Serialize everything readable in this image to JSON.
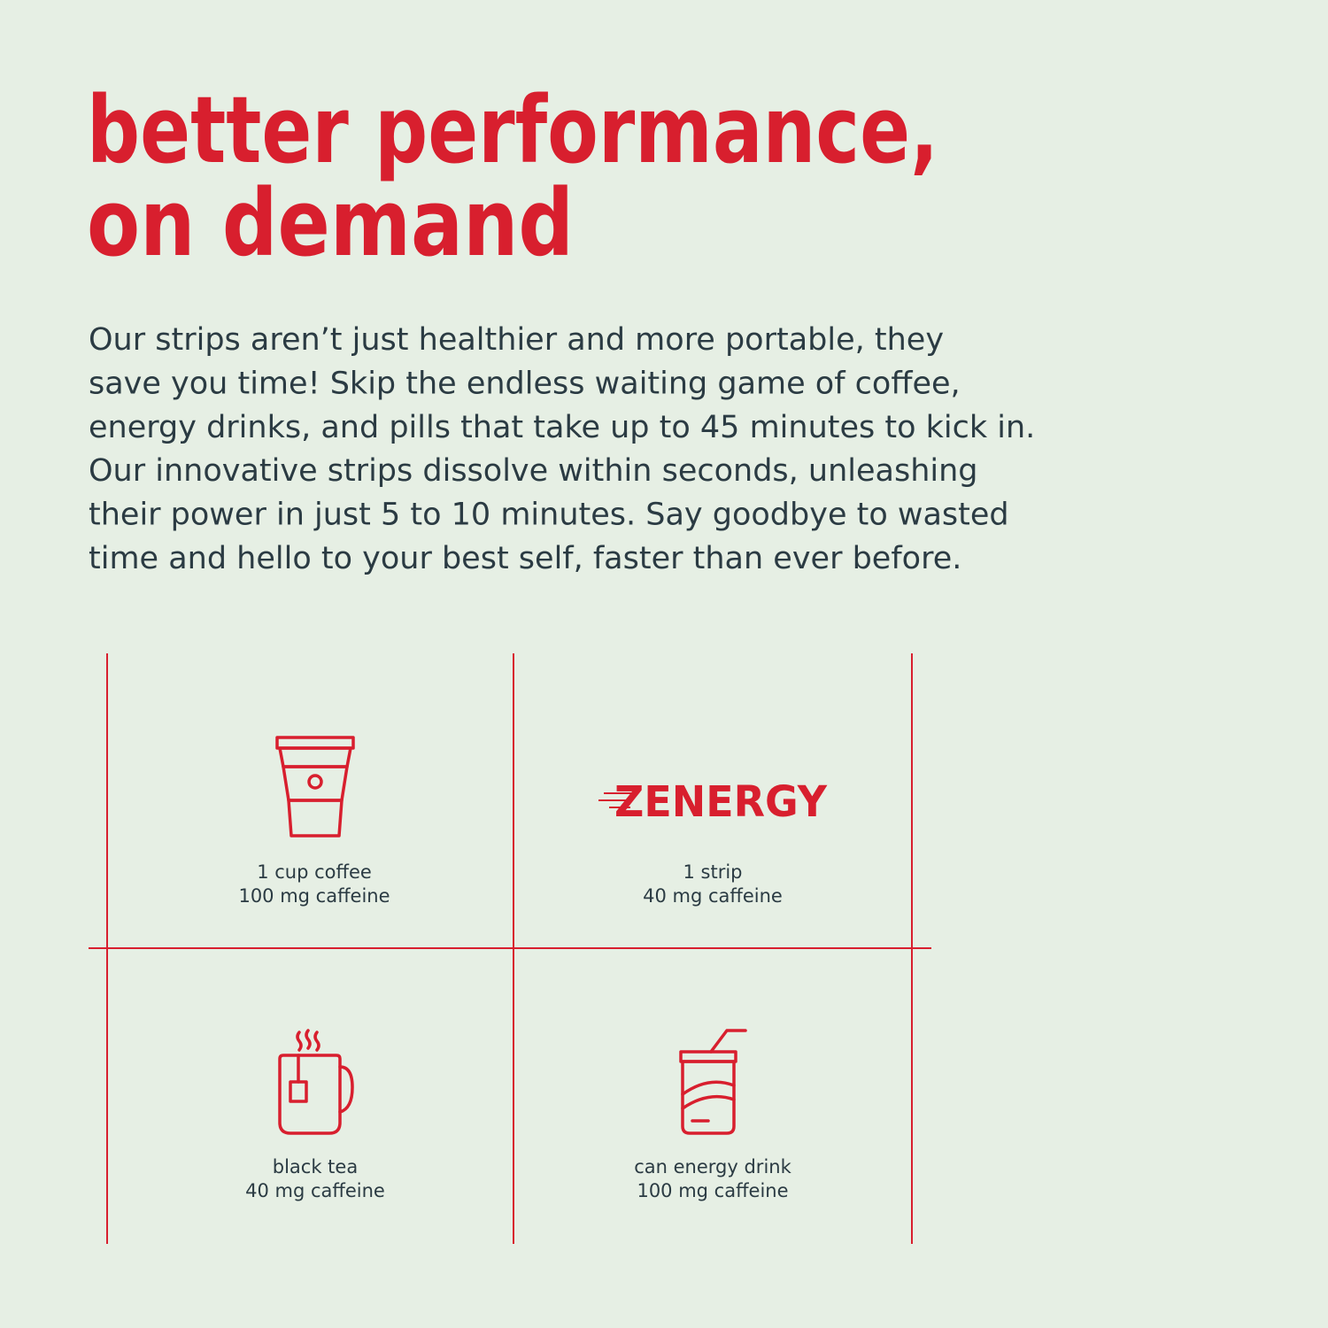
{
  "title": {
    "lines": [
      "better performance,",
      "on demand"
    ]
  },
  "body": {
    "lines": [
      "Our strips aren’t just healthier and more portable, they",
      "save you time! Skip the endless waiting game of coffee,",
      "energy drinks, and pills that take up to 45 minutes to kick in.",
      "Our innovative strips dissolve within seconds, unleashing",
      "their power in just 5 to 10 minutes. Say goodbye to wasted",
      "time and hello to your best self, faster than ever before."
    ]
  },
  "comparison": {
    "logo": "ZENERGY",
    "cells": [
      {
        "label": "1 cup coffee",
        "caption": "100 mg caffeine"
      },
      {
        "label": "1 strip",
        "caption": "40 mg caffeine"
      },
      {
        "label": "black tea",
        "caption": "40 mg caffeine"
      },
      {
        "label": "can energy drink",
        "caption": "100 mg caffeine"
      }
    ]
  }
}
